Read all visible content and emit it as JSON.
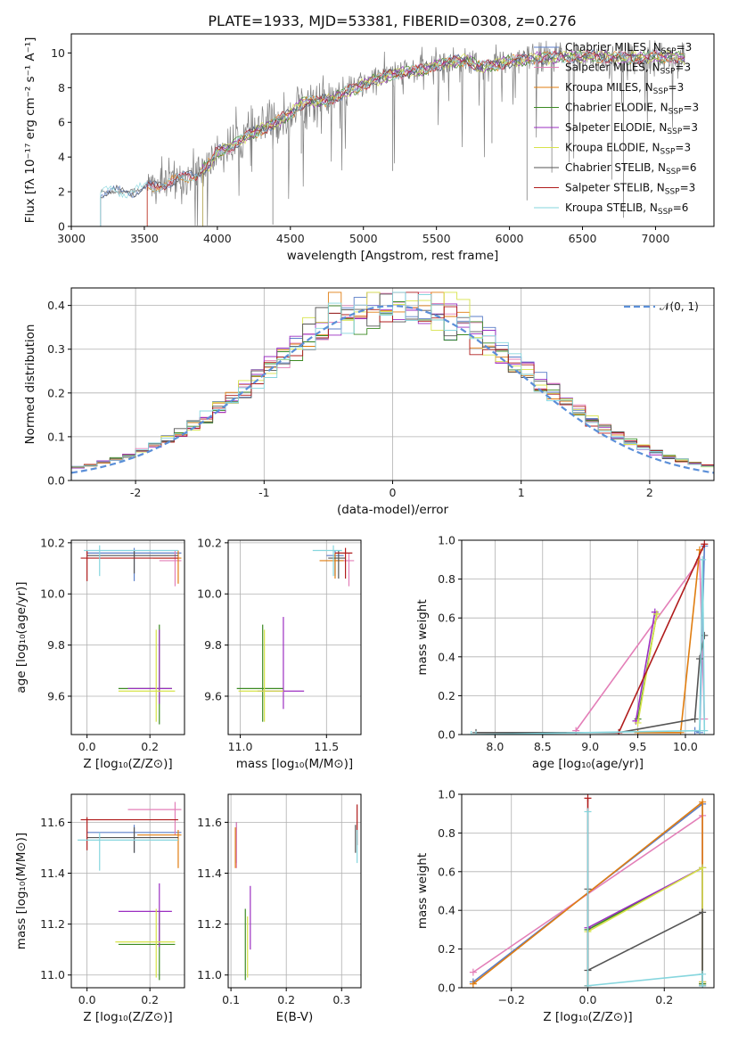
{
  "title": "PLATE=1933, MJD=53381, FIBERID=0308, z=0.276",
  "colors": {
    "Chabrier MILES": "#5b7ec8",
    "Salpeter MILES": "#e37fb8",
    "Kroupa MILES": "#e07d10",
    "Chabrier ELODIE": "#3b8a22",
    "Salpeter ELODIE": "#9b2fc1",
    "Kroupa ELODIE": "#d7e34a",
    "Chabrier STELIB": "#555555",
    "Salpeter STELIB": "#b01c1c",
    "Kroupa STELIB": "#86d6de",
    "gauss": "#5b8fd8"
  },
  "chart_data": [
    {
      "id": "spectrum",
      "type": "line",
      "title": "PLATE=1933, MJD=53381, FIBERID=0308, z=0.276",
      "xlabel": "wavelength [Angstrom, rest frame]",
      "ylabel": "Flux [fλ 10⁻¹⁷ erg cm⁻² s⁻¹ A⁻¹]",
      "xlim": [
        3000,
        7400
      ],
      "ylim": [
        0,
        11.1
      ],
      "xticks": [
        3000,
        3500,
        4000,
        4500,
        5000,
        5500,
        6000,
        6500,
        7000
      ],
      "yticks": [
        0,
        2,
        4,
        6,
        8,
        10
      ],
      "legend_position": "upper right",
      "legend": [
        "Chabrier MILES, N_SSP=3",
        "Salpeter MILES, N_SSP=3",
        "Kroupa MILES, N_SSP=3",
        "Chabrier ELODIE, N_SSP=3",
        "Salpeter ELODIE, N_SSP=3",
        "Kroupa ELODIE, N_SSP=3",
        "Chabrier STELIB, N_SSP=6",
        "Salpeter STELIB, N_SSP=3",
        "Kroupa STELIB, N_SSP=6"
      ],
      "continuum": {
        "x": [
          3200,
          3400,
          3550,
          3700,
          3850,
          3950,
          4000,
          4100,
          4200,
          4300,
          4400,
          4500,
          4600,
          4700,
          4800,
          4900,
          5000,
          5100,
          5200,
          5300,
          5400,
          5500,
          5600,
          5700,
          5800,
          5900,
          6000,
          6200,
          6400,
          6600,
          6800,
          7000,
          7200
        ],
        "y": [
          2.0,
          2.0,
          2.3,
          2.6,
          3.0,
          3.6,
          4.3,
          4.6,
          5.2,
          5.6,
          6.0,
          6.5,
          7.2,
          7.2,
          7.4,
          7.8,
          8.2,
          8.5,
          8.8,
          8.9,
          9.0,
          9.3,
          9.5,
          9.6,
          9.2,
          9.3,
          9.5,
          9.7,
          9.8,
          9.8,
          9.7,
          9.8,
          9.7
        ]
      },
      "data_range": [
        3200,
        7200
      ],
      "model_starts": [
        3200,
        3520,
        3520,
        3900,
        3900,
        3900,
        3200,
        3520,
        3200
      ]
    },
    {
      "id": "residuals",
      "type": "histogram",
      "xlabel": "(data-model)/error",
      "ylabel": "Normed distribution",
      "xlim": [
        -2.5,
        2.5
      ],
      "ylim": [
        0,
        0.44
      ],
      "xticks": [
        -2,
        -1,
        0,
        1,
        2
      ],
      "yticks": [
        0.0,
        0.1,
        0.2,
        0.3,
        0.4
      ],
      "grid": true,
      "legend": [
        "𝒩(0, 1)"
      ],
      "legend_position": "upper right",
      "bin_width": 0.1
    },
    {
      "id": "Z-age",
      "type": "errorbar",
      "xlabel": "Z [log₁₀(Z/Z⊙)]",
      "ylabel": "age  [log₁₀(age/yr)]",
      "xlim": [
        -0.05,
        0.31
      ],
      "ylim": [
        9.45,
        10.21
      ],
      "xticks": [
        0.0,
        0.2
      ],
      "yticks": [
        9.6,
        9.8,
        10.0,
        10.2
      ],
      "grid": true,
      "points": [
        {
          "model": "Chabrier MILES",
          "x": 0.15,
          "y": 10.16,
          "xerr": [
            0.15,
            0.15
          ],
          "yerr": [
            0.11,
            0.02
          ]
        },
        {
          "model": "Salpeter MILES",
          "x": 0.28,
          "y": 10.13,
          "xerr": [
            0.05,
            0.02
          ],
          "yerr": [
            0.1,
            0.04
          ]
        },
        {
          "model": "Kroupa MILES",
          "x": 0.29,
          "y": 10.14,
          "xerr": [
            0.08,
            0.01
          ],
          "yerr": [
            0.1,
            0.03
          ]
        },
        {
          "model": "Chabrier ELODIE",
          "x": 0.23,
          "y": 9.63,
          "xerr": [
            0.13,
            0.04
          ],
          "yerr": [
            0.14,
            0.25
          ]
        },
        {
          "model": "Salpeter ELODIE",
          "x": 0.23,
          "y": 9.63,
          "xerr": [
            0.1,
            0.04
          ],
          "yerr": [
            0.06,
            0.23
          ]
        },
        {
          "model": "Kroupa ELODIE",
          "x": 0.22,
          "y": 9.62,
          "xerr": [
            0.12,
            0.06
          ],
          "yerr": [
            0.12,
            0.24
          ]
        },
        {
          "model": "Chabrier STELIB",
          "x": 0.15,
          "y": 10.15,
          "xerr": [
            0.15,
            0.14
          ],
          "yerr": [
            0.07,
            0.02
          ]
        },
        {
          "model": "Salpeter STELIB",
          "x": 0.0,
          "y": 10.14,
          "xerr": [
            0.02,
            0.29
          ],
          "yerr": [
            0.09,
            0.03
          ]
        },
        {
          "model": "Kroupa STELIB",
          "x": 0.04,
          "y": 10.17,
          "xerr": [
            0.05,
            0.25
          ],
          "yerr": [
            0.1,
            0.02
          ]
        }
      ]
    },
    {
      "id": "mass-age",
      "type": "errorbar",
      "xlabel": "mass [log₁₀(M/M⊙)]",
      "ylabel": "",
      "xlim": [
        10.93,
        11.7
      ],
      "ylim": [
        9.45,
        10.21
      ],
      "xticks": [
        11.0,
        11.5
      ],
      "yticks": [
        9.6,
        9.8,
        10.0,
        10.2
      ],
      "grid": true,
      "points": [
        {
          "model": "Chabrier MILES",
          "x": 11.55,
          "y": 10.15,
          "xerr": [
            0.05,
            0.05
          ],
          "yerr": [
            0.08,
            0.02
          ]
        },
        {
          "model": "Salpeter MILES",
          "x": 11.63,
          "y": 10.13,
          "xerr": [
            0.08,
            0.03
          ],
          "yerr": [
            0.1,
            0.03
          ]
        },
        {
          "model": "Kroupa MILES",
          "x": 11.55,
          "y": 10.13,
          "xerr": [
            0.09,
            0.05
          ],
          "yerr": [
            0.07,
            0.03
          ]
        },
        {
          "model": "Chabrier ELODIE",
          "x": 11.13,
          "y": 9.63,
          "xerr": [
            0.15,
            0.12
          ],
          "yerr": [
            0.13,
            0.25
          ]
        },
        {
          "model": "Salpeter ELODIE",
          "x": 11.25,
          "y": 9.62,
          "xerr": [
            0.15,
            0.12
          ],
          "yerr": [
            0.07,
            0.29
          ]
        },
        {
          "model": "Kroupa ELODIE",
          "x": 11.14,
          "y": 9.62,
          "xerr": [
            0.15,
            0.11
          ],
          "yerr": [
            0.12,
            0.24
          ]
        },
        {
          "model": "Chabrier STELIB",
          "x": 11.57,
          "y": 10.14,
          "xerr": [
            0.06,
            0.04
          ],
          "yerr": [
            0.08,
            0.03
          ]
        },
        {
          "model": "Salpeter STELIB",
          "x": 11.61,
          "y": 10.16,
          "xerr": [
            0.06,
            0.04
          ],
          "yerr": [
            0.1,
            0.02
          ]
        },
        {
          "model": "Kroupa STELIB",
          "x": 11.54,
          "y": 10.17,
          "xerr": [
            0.12,
            0.05
          ],
          "yerr": [
            0.1,
            0.02
          ]
        }
      ]
    },
    {
      "id": "age-weight",
      "type": "line",
      "xlabel": "age  [log₁₀(age/yr)]",
      "ylabel": "mass weight",
      "xlim": [
        7.65,
        10.3
      ],
      "ylim": [
        0,
        1.0
      ],
      "xticks": [
        8.0,
        8.5,
        9.0,
        9.5,
        10.0
      ],
      "yticks": [
        0.0,
        0.2,
        0.4,
        0.6,
        0.8,
        1.0
      ],
      "grid": true,
      "series": [
        {
          "model": "Chabrier MILES",
          "x": [
            10.1,
            10.15,
            10.2
          ],
          "y": [
            0.02,
            0.01,
            0.97
          ]
        },
        {
          "model": "Salpeter MILES",
          "x": [
            8.85,
            10.15,
            10.2
          ],
          "y": [
            0.02,
            0.9,
            0.08
          ]
        },
        {
          "model": "Kroupa MILES",
          "x": [
            9.5,
            9.95,
            10.15
          ],
          "y": [
            0.01,
            0.01,
            0.95
          ]
        },
        {
          "model": "Chabrier ELODIE",
          "x": [
            9.5,
            9.7
          ],
          "y": [
            0.08,
            0.62
          ]
        },
        {
          "model": "Salpeter ELODIE",
          "x": [
            9.48,
            9.68
          ],
          "y": [
            0.07,
            0.63
          ]
        },
        {
          "model": "Kroupa ELODIE",
          "x": [
            9.5,
            9.7
          ],
          "y": [
            0.06,
            0.62
          ]
        },
        {
          "model": "Chabrier STELIB",
          "x": [
            7.8,
            9.3,
            10.1,
            10.15,
            10.2
          ],
          "y": [
            0.01,
            0.01,
            0.08,
            0.39,
            0.51
          ]
        },
        {
          "model": "Salpeter STELIB",
          "x": [
            9.3,
            10.2
          ],
          "y": [
            0.01,
            0.98
          ]
        },
        {
          "model": "Kroupa STELIB",
          "x": [
            7.75,
            7.8,
            10.15,
            10.18,
            10.2
          ],
          "y": [
            0.0,
            0.0,
            0.02,
            0.9,
            0.02
          ]
        }
      ]
    },
    {
      "id": "Z-mass",
      "type": "errorbar",
      "xlabel": "Z [log₁₀(Z/Z⊙)]",
      "ylabel": "mass [log₁₀(M/M⊙)]",
      "xlim": [
        -0.05,
        0.31
      ],
      "ylim": [
        10.95,
        11.71
      ],
      "xticks": [
        0.0,
        0.2
      ],
      "yticks": [
        11.0,
        11.2,
        11.4,
        11.6
      ],
      "grid": true,
      "points": [
        {
          "model": "Chabrier MILES",
          "x": 0.15,
          "y": 11.56,
          "xerr": [
            0.15,
            0.15
          ],
          "yerr": [
            0.08,
            0.03
          ]
        },
        {
          "model": "Salpeter MILES",
          "x": 0.28,
          "y": 11.65,
          "xerr": [
            0.15,
            0.02
          ],
          "yerr": [
            0.1,
            0.03
          ]
        },
        {
          "model": "Kroupa MILES",
          "x": 0.29,
          "y": 11.55,
          "xerr": [
            0.13,
            0.01
          ],
          "yerr": [
            0.13,
            0.02
          ]
        },
        {
          "model": "Chabrier ELODIE",
          "x": 0.23,
          "y": 11.12,
          "xerr": [
            0.13,
            0.05
          ],
          "yerr": [
            0.14,
            0.13
          ]
        },
        {
          "model": "Salpeter ELODIE",
          "x": 0.23,
          "y": 11.25,
          "xerr": [
            0.13,
            0.04
          ],
          "yerr": [
            0.14,
            0.11
          ]
        },
        {
          "model": "Kroupa ELODIE",
          "x": 0.22,
          "y": 11.13,
          "xerr": [
            0.13,
            0.06
          ],
          "yerr": [
            0.14,
            0.13
          ]
        },
        {
          "model": "Chabrier STELIB",
          "x": 0.15,
          "y": 11.54,
          "xerr": [
            0.15,
            0.14
          ],
          "yerr": [
            0.06,
            0.04
          ]
        },
        {
          "model": "Salpeter STELIB",
          "x": 0.0,
          "y": 11.61,
          "xerr": [
            0.02,
            0.29
          ],
          "yerr": [
            0.12,
            0.01
          ]
        },
        {
          "model": "Kroupa STELIB",
          "x": 0.04,
          "y": 11.53,
          "xerr": [
            0.07,
            0.25
          ],
          "yerr": [
            0.12,
            0.03
          ]
        }
      ]
    },
    {
      "id": "ebv-mass",
      "type": "errorbar",
      "xlabel": "E(B-V)",
      "ylabel": "",
      "xlim": [
        0.095,
        0.335
      ],
      "ylim": [
        10.95,
        11.71
      ],
      "xticks": [
        0.1,
        0.2,
        0.3
      ],
      "yticks": [
        11.0,
        11.2,
        11.4,
        11.6
      ],
      "grid": true,
      "points": [
        {
          "model": "Chabrier MILES",
          "x": 0.11,
          "y": 11.55,
          "xerr": [
            0,
            0
          ],
          "yerr": [
            0.11,
            0.05
          ]
        },
        {
          "model": "Salpeter MILES",
          "x": 0.11,
          "y": 11.55,
          "xerr": [
            0,
            0
          ],
          "yerr": [
            0.13,
            0.05
          ]
        },
        {
          "model": "Kroupa MILES",
          "x": 0.108,
          "y": 11.5,
          "xerr": [
            0,
            0
          ],
          "yerr": [
            0.08,
            0.08
          ]
        },
        {
          "model": "Chabrier ELODIE",
          "x": 0.126,
          "y": 11.1,
          "xerr": [
            0,
            0
          ],
          "yerr": [
            0.12,
            0.16
          ]
        },
        {
          "model": "Salpeter ELODIE",
          "x": 0.135,
          "y": 11.2,
          "xerr": [
            0,
            0
          ],
          "yerr": [
            0.1,
            0.15
          ]
        },
        {
          "model": "Kroupa ELODIE",
          "x": 0.13,
          "y": 11.13,
          "xerr": [
            0,
            0
          ],
          "yerr": [
            0.14,
            0.1
          ]
        },
        {
          "model": "Chabrier STELIB",
          "x": 0.325,
          "y": 11.55,
          "xerr": [
            0,
            0
          ],
          "yerr": [
            0.07,
            0.04
          ]
        },
        {
          "model": "Salpeter STELIB",
          "x": 0.328,
          "y": 11.6,
          "xerr": [
            0,
            0
          ],
          "yerr": [
            0.09,
            0.07
          ]
        },
        {
          "model": "Kroupa STELIB",
          "x": 0.328,
          "y": 11.52,
          "xerr": [
            0,
            0
          ],
          "yerr": [
            0.08,
            0.05
          ]
        }
      ]
    },
    {
      "id": "Z-weight",
      "type": "line",
      "xlabel": "Z [log₁₀(Z/Z⊙)]",
      "ylabel": "mass weight",
      "xlim": [
        -0.33,
        0.33
      ],
      "ylim": [
        0,
        1.0
      ],
      "xticks": [
        -0.2,
        0.0,
        0.2
      ],
      "yticks": [
        0.0,
        0.2,
        0.4,
        0.6,
        0.8,
        1.0
      ],
      "grid": true,
      "series": [
        {
          "model": "Chabrier MILES",
          "x": [
            -0.3,
            0.3,
            0.3
          ],
          "y": [
            0.03,
            0.95,
            0.02
          ]
        },
        {
          "model": "Salpeter MILES",
          "x": [
            -0.3,
            0.3,
            0.3
          ],
          "y": [
            0.08,
            0.89,
            0.03
          ]
        },
        {
          "model": "Kroupa MILES",
          "x": [
            -0.3,
            0.3,
            0.3
          ],
          "y": [
            0.02,
            0.96,
            0.02
          ]
        },
        {
          "model": "Chabrier ELODIE",
          "x": [
            0.0,
            0.0,
            0.3,
            0.3
          ],
          "y": [
            0.01,
            0.3,
            0.62,
            0.02
          ]
        },
        {
          "model": "Salpeter ELODIE",
          "x": [
            0.0,
            0.0,
            0.3,
            0.3
          ],
          "y": [
            0.01,
            0.31,
            0.62,
            0.03
          ]
        },
        {
          "model": "Kroupa ELODIE",
          "x": [
            0.0,
            0.0,
            0.3,
            0.3
          ],
          "y": [
            0.01,
            0.29,
            0.62,
            0.03
          ]
        },
        {
          "model": "Chabrier STELIB",
          "x": [
            0.0,
            0.0,
            0.3,
            0.3
          ],
          "y": [
            0.51,
            0.09,
            0.39,
            0.01
          ]
        },
        {
          "model": "Salpeter STELIB",
          "x": [
            0.0,
            0.0
          ],
          "y": [
            0.01,
            0.98
          ]
        },
        {
          "model": "Kroupa STELIB",
          "x": [
            0.0,
            0.0,
            0.3,
            0.3
          ],
          "y": [
            0.91,
            0.01,
            0.07,
            0.01
          ]
        }
      ]
    }
  ]
}
